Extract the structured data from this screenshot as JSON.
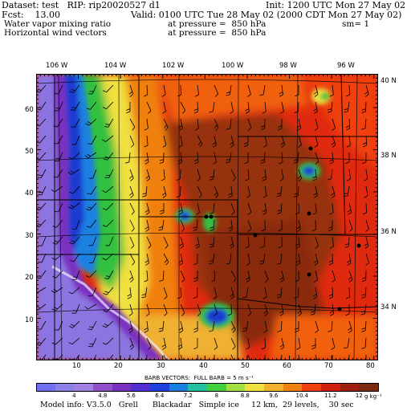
{
  "header": {
    "line1_left": "Dataset: test   RIP: rip20020527 d1",
    "line1_right": "Init: 1200 UTC Mon 27 May 02",
    "line2_left": "Fcst:    13.00",
    "line2_right": "Valid: 0100 UTC Tue 28 May 02 (2000 CDT Mon 27 May 02)",
    "line3_left": "Water vapor mixing ratio",
    "line3_mid": "at pressure =  850 hPa",
    "line3_right": "sm= 1",
    "line4_left": "Horizontal wind vectors",
    "line4_mid": "at pressure =  850 hPa"
  },
  "map": {
    "top_labels": [
      "106 W",
      "104 W",
      "102 W",
      "100 W",
      "98 W",
      "96 W"
    ],
    "right_labels": [
      "40 N",
      "38 N",
      "36 N",
      "34 N"
    ],
    "left_ticks": [
      "60",
      "50",
      "40",
      "30",
      "20",
      "10"
    ],
    "bottom_ticks": [
      "10",
      "20",
      "30",
      "40",
      "50",
      "60",
      "70",
      "80"
    ],
    "cities_icon": "dot-icon",
    "colors": {
      "very_dry": "#8c74e0",
      "dry_purple": "#7a30c0",
      "blue": "#1a3ad0",
      "green": "#30c040",
      "yellow": "#f0e040",
      "orange": "#f08010",
      "red": "#e02a10",
      "brown": "#963010"
    }
  },
  "barbs_caption": "BARB VECTORS:  FULL BARB = 5 m s⁻¹",
  "colorbar": {
    "colors": [
      "#7070f0",
      "#8c80e8",
      "#a080e0",
      "#9050c8",
      "#7a30c0",
      "#5030d0",
      "#2040e0",
      "#1a80e0",
      "#20c0a0",
      "#40d040",
      "#a0e040",
      "#f0e040",
      "#f0b030",
      "#f08010",
      "#f04010",
      "#d02010",
      "#a02010",
      "#7a2a10"
    ],
    "labels": [
      "4",
      "4.8",
      "5.6",
      "6.4",
      "7.2",
      "8",
      "8.8",
      "9.6",
      "10.4",
      "11.2",
      "12"
    ],
    "unit": "g kg⁻¹"
  },
  "footer": "Model info: V3.5.0   Grell      Blackadar   Simple ice     12 km,  29 levels,    30 sec"
}
